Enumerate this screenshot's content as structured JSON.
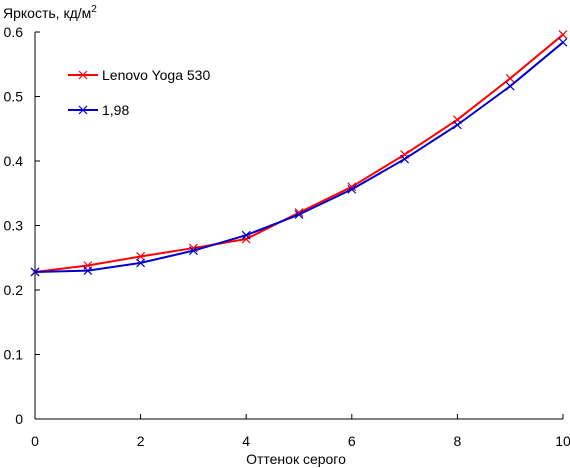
{
  "chart_data": {
    "type": "line",
    "title": "",
    "ylabel": "Яркость, кд/м",
    "ylabel_sup": "2",
    "xlabel": "Оттенок серого",
    "xlim": [
      0,
      10
    ],
    "ylim": [
      0,
      0.6
    ],
    "x_ticks": [
      "0",
      "2",
      "4",
      "6",
      "8",
      "10"
    ],
    "y_ticks": [
      "0",
      "0.1",
      "0.2",
      "0.3",
      "0.4",
      "0.5",
      "0.6"
    ],
    "x_tick_values": [
      0,
      2,
      4,
      6,
      8,
      10
    ],
    "y_tick_values": [
      0,
      0.1,
      0.2,
      0.3,
      0.4,
      0.5,
      0.6
    ],
    "grid": false,
    "legend_position": "top-left",
    "x": [
      0,
      1,
      2,
      3,
      4,
      5,
      6,
      7,
      8,
      9,
      10
    ],
    "series": [
      {
        "name": "Lenovo Yoga 530",
        "color": "#ff0000",
        "marker": "x",
        "values": [
          0.228,
          0.238,
          0.252,
          0.265,
          0.279,
          0.32,
          0.36,
          0.41,
          0.464,
          0.528,
          0.596
        ]
      },
      {
        "name": "1,98",
        "color": "#0000cc",
        "marker": "x",
        "values": [
          0.228,
          0.23,
          0.242,
          0.261,
          0.285,
          0.317,
          0.356,
          0.403,
          0.456,
          0.516,
          0.584
        ]
      }
    ]
  }
}
